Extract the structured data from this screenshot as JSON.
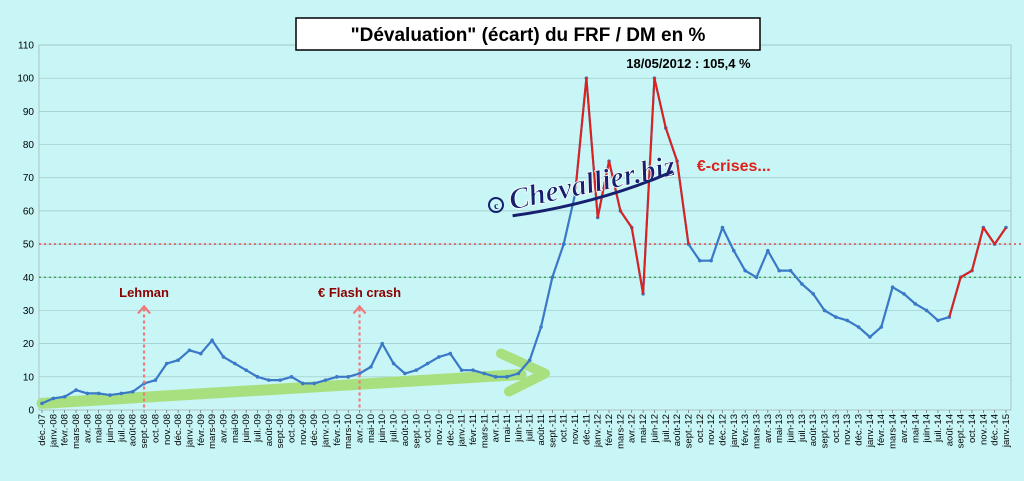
{
  "chart_data": {
    "type": "line",
    "title": "\"Dévaluation\" (écart) du FRF / DM en %",
    "ylim": [
      0,
      110
    ],
    "yticks": [
      0,
      10,
      20,
      30,
      40,
      50,
      60,
      70,
      80,
      90,
      100,
      110
    ],
    "grid": "horizontal",
    "x_labels": [
      "déc.-07",
      "janv.-08",
      "févr.-08",
      "mars-08",
      "avr.-08",
      "mai-08",
      "juin-08",
      "juil.-08",
      "août-08",
      "sept.-08",
      "oct.-08",
      "nov.-08",
      "déc.-08",
      "janv.-09",
      "févr.-09",
      "mars-09",
      "avr.-09",
      "mai-09",
      "juin-09",
      "juil.-09",
      "août-09",
      "sept.-09",
      "oct.-09",
      "nov.-09",
      "déc.-09",
      "janv.-10",
      "févr.-10",
      "mars-10",
      "avr.-10",
      "mai-10",
      "juin-10",
      "juil.-10",
      "août-10",
      "sept.-10",
      "oct.-10",
      "nov.-10",
      "déc.-10",
      "janv.-11",
      "févr.-11",
      "mars-11",
      "avr.-11",
      "mai-11",
      "juin-11",
      "juil.-11",
      "août-11",
      "sept.-11",
      "oct.-11",
      "nov.-11",
      "déc.-11",
      "janv.-12",
      "févr.-12",
      "mars-12",
      "avr.-12",
      "mai-12",
      "juin-12",
      "juil.-12",
      "août-12",
      "sept.-12",
      "oct.-12",
      "nov.-12",
      "déc.-12",
      "janv.-13",
      "févr.-13",
      "mars-13",
      "avr.-13",
      "mai-13",
      "juin-13",
      "juil.-13",
      "août-13",
      "sept.-13",
      "oct.-13",
      "nov.-13",
      "déc.-13",
      "janv.-14",
      "févr.-14",
      "mars-14",
      "avr.-14",
      "mai-14",
      "juin-14",
      "juil.-14",
      "août-14",
      "sept.-14",
      "oct.-14",
      "nov.-14",
      "déc.-14",
      "janv.-15"
    ],
    "series": [
      {
        "color": "#3a78c8",
        "values": [
          2,
          3.5,
          4,
          6,
          5,
          5,
          4.5,
          5,
          5.5,
          8,
          9,
          14,
          15,
          18,
          17,
          21,
          16,
          14,
          12,
          10,
          9,
          9,
          10,
          8,
          8,
          9,
          10,
          10,
          11,
          13,
          20,
          14,
          11,
          12,
          14,
          16,
          17,
          12,
          12,
          11,
          10,
          10,
          11,
          15,
          25,
          40,
          50,
          65,
          100,
          58,
          75,
          60,
          55,
          35,
          100,
          85,
          75,
          50,
          45,
          45,
          55,
          48,
          42,
          40,
          48,
          42,
          42,
          38,
          35,
          30,
          28,
          27,
          25,
          22,
          25,
          37,
          35,
          32,
          30,
          27,
          28,
          40,
          42,
          55,
          50,
          55
        ]
      },
      {
        "color": "#e0201a",
        "segments": [
          [
            47,
            49
          ],
          [
            49,
            53
          ],
          [
            53,
            57
          ],
          [
            80,
            85
          ]
        ]
      }
    ],
    "reference_lines": [
      {
        "y": 50,
        "color": "#e03c3c",
        "style": "dotted"
      },
      {
        "y": 40,
        "color": "#3aa050",
        "style": "dotted"
      }
    ],
    "trend_arrow": {
      "from": [
        0,
        2
      ],
      "to": [
        44,
        11
      ],
      "color": "#a8e080"
    },
    "annotations": [
      {
        "text": "Lehman",
        "x_index": 9,
        "y": 34,
        "color": "#8b0000",
        "arrow_to_y": 30
      },
      {
        "text": "€ Flash crash",
        "x_index": 28,
        "y": 34,
        "color": "#8b0000",
        "arrow_to_y": 30
      },
      {
        "text": "18/05/2012 : 105,4 %",
        "x_index": 57,
        "y": 103,
        "color": "#000000"
      },
      {
        "text": "€-crises...",
        "x_index": 61,
        "y": 72,
        "color": "#e0201a"
      }
    ],
    "watermark": "© Chevallier.biz"
  }
}
